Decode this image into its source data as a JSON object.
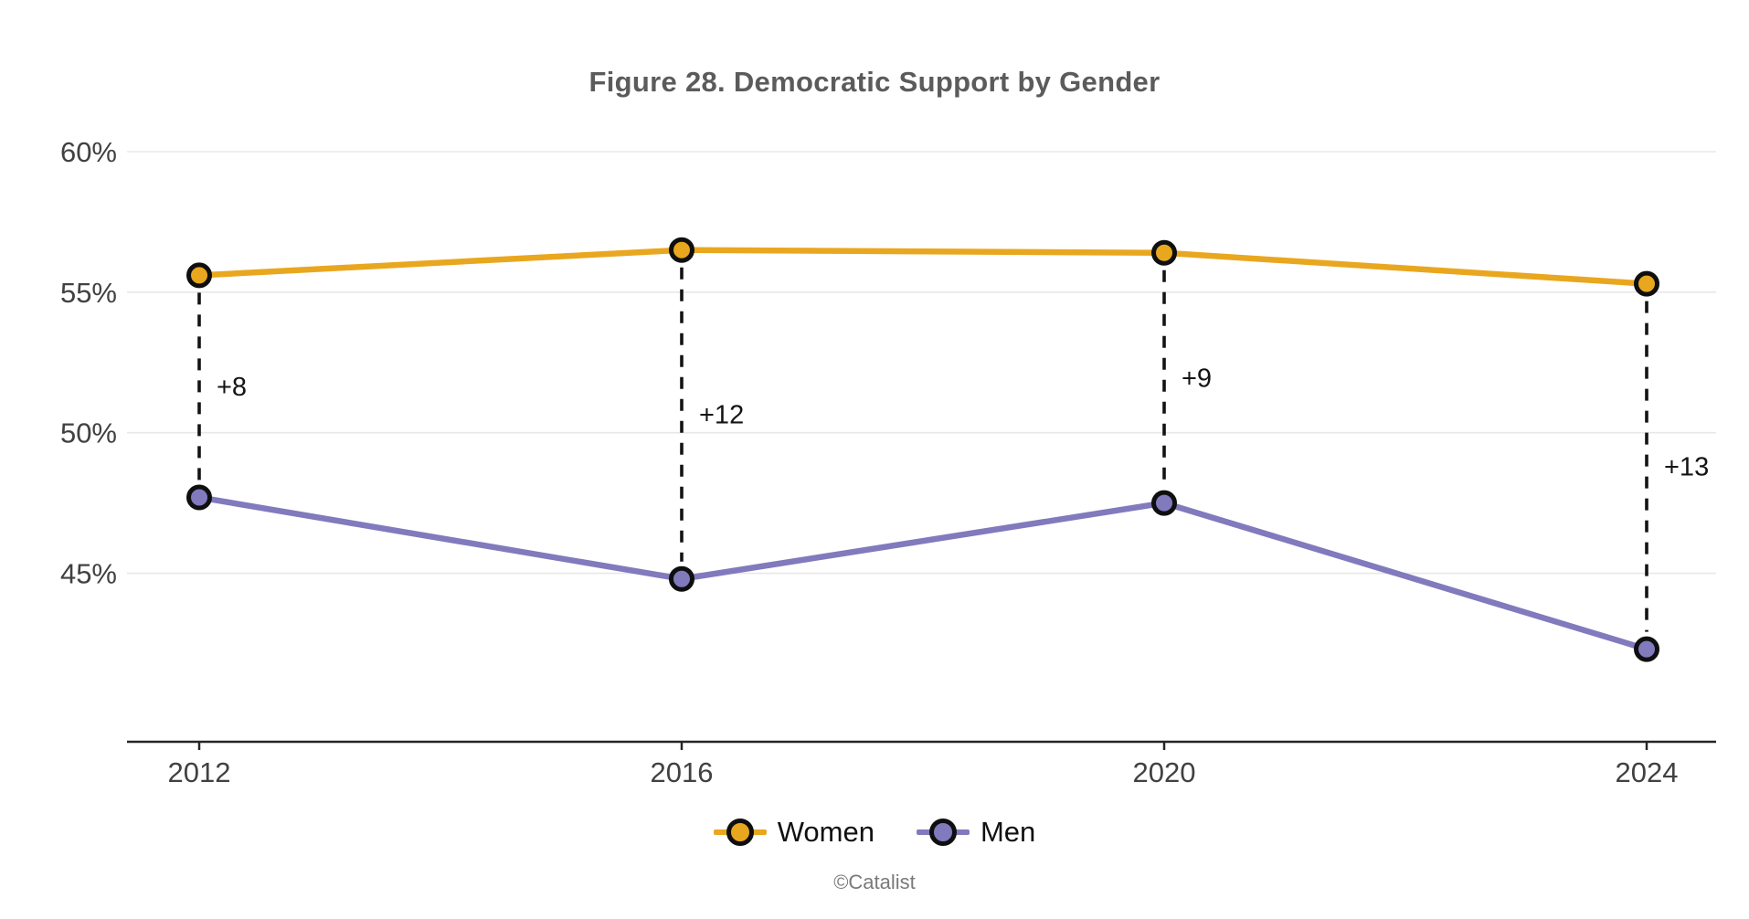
{
  "attribution": "©Catalist",
  "colors": {
    "women": "#E9A71F",
    "men": "#817ABD",
    "gridline": "#E8E8E8",
    "axis": "#262626",
    "axis_label": "#414141",
    "connector": "#131313",
    "gap_label": "#141414",
    "marker_stroke": "#0F0F0F",
    "title": "#5B5B5B",
    "legend_text": "#111111",
    "attribution_text": "#7A7A7A"
  },
  "chart_data": {
    "type": "line",
    "title": "Figure 28. Democratic Support by Gender",
    "xlabel": "",
    "ylabel": "",
    "x": [
      2012,
      2016,
      2020,
      2024
    ],
    "x_tick_labels": [
      "2012",
      "2016",
      "2020",
      "2024"
    ],
    "y_ticks": [
      60,
      55,
      50,
      45
    ],
    "y_tick_labels": [
      "60%",
      "55%",
      "50%",
      "45%"
    ],
    "ylim": [
      39,
      61
    ],
    "grid": "horizontal",
    "legend_position": "bottom",
    "series": [
      {
        "name": "Women",
        "color": "#E9A71F",
        "values": [
          55.6,
          56.5,
          56.4,
          55.3
        ]
      },
      {
        "name": "Men",
        "color": "#817ABD",
        "values": [
          47.7,
          44.8,
          47.5,
          42.3
        ]
      }
    ],
    "gap_labels": [
      {
        "x": 2012,
        "label": "+8"
      },
      {
        "x": 2016,
        "label": "+12"
      },
      {
        "x": 2020,
        "label": "+9"
      },
      {
        "x": 2024,
        "label": "+13"
      }
    ]
  }
}
